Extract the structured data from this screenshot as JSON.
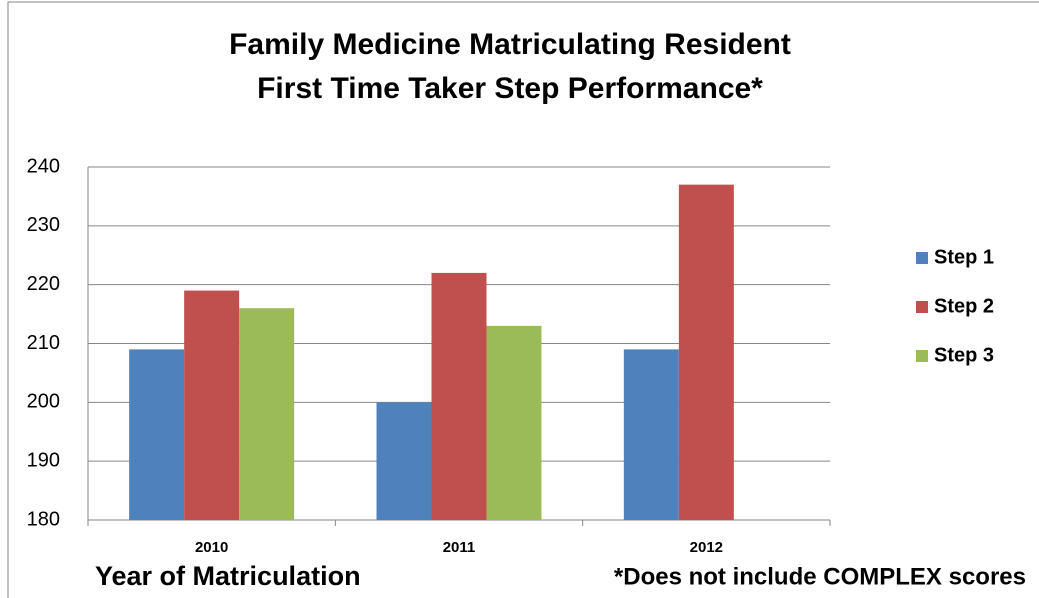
{
  "chart_data": {
    "type": "bar",
    "title": [
      "Family Medicine  Matriculating Resident",
      "First Time Taker Step Performance*"
    ],
    "categories": [
      "2010",
      "2011",
      "2012"
    ],
    "series": [
      {
        "name": "Step 1",
        "color": "#4f81bd",
        "values": [
          209,
          200,
          209
        ]
      },
      {
        "name": "Step 2",
        "color": "#c0504d",
        "values": [
          219,
          222,
          237
        ]
      },
      {
        "name": "Step 3",
        "color": "#9bbb59",
        "values": [
          216,
          213,
          null
        ]
      }
    ],
    "ylim": [
      180,
      240
    ],
    "yticks": [
      180,
      190,
      200,
      210,
      220,
      230,
      240
    ],
    "grid": true,
    "legend": "right",
    "x_label": "Year of Matriculation",
    "annotation": "*Does not include COMPLEX scores"
  }
}
